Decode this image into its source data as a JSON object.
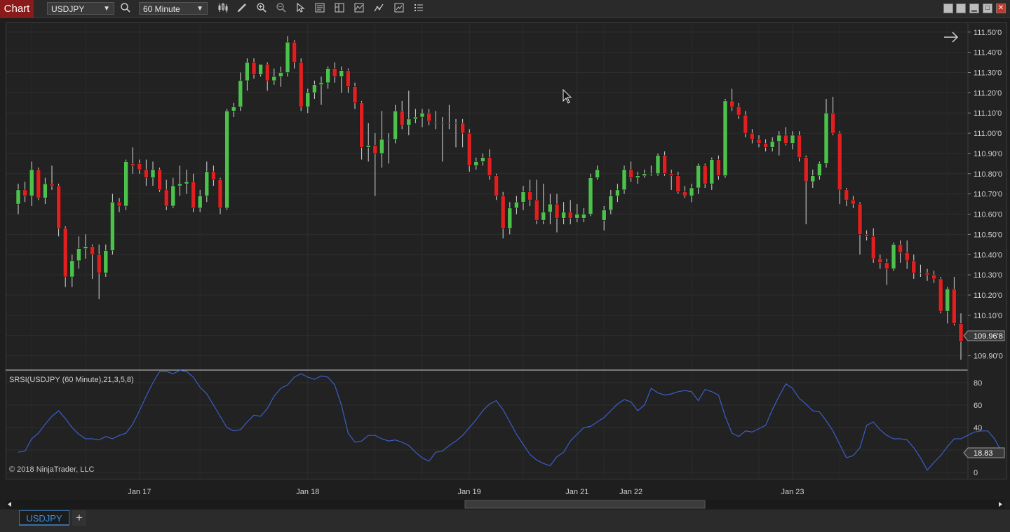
{
  "window": {
    "title": "Chart"
  },
  "toolbar": {
    "instrument": "USDJPY",
    "interval": "60 Minute",
    "icons": [
      "search-icon",
      "bar-chart-icon",
      "pencil-icon",
      "zoom-in-icon",
      "zoom-out-icon",
      "pointer-icon",
      "data-box-icon",
      "chart-style-icon",
      "indicators-icon",
      "strategies-icon",
      "chart-trader-icon",
      "properties-icon"
    ]
  },
  "window_buttons": [
    "minimize-icon",
    "maximize-icon",
    "close-icon"
  ],
  "price_axis": {
    "labels": [
      "111.50'0",
      "111.40'0",
      "111.30'0",
      "111.20'0",
      "111.10'0",
      "111.00'0",
      "110.90'0",
      "110.80'0",
      "110.70'0",
      "110.60'0",
      "110.50'0",
      "110.40'0",
      "110.30'0",
      "110.20'0",
      "110.10'0",
      "110.00'0",
      "109.90'0"
    ],
    "current_price": "109.96'8"
  },
  "indicator": {
    "label": "SRSI(USDJPY (60 Minute),21,3,5,8)",
    "axis_labels": [
      "80",
      "60",
      "40",
      "20",
      "0"
    ],
    "current_value": "18.83",
    "copyright": "© 2018 NinjaTrader, LLC"
  },
  "time_axis": {
    "labels": [
      "Jan 17",
      "Jan 18",
      "Jan 19",
      "Jan 21",
      "Jan 22",
      "Jan 23"
    ]
  },
  "tabs": [
    {
      "label": "USDJPY"
    }
  ],
  "add_tab": "+",
  "chart_data": {
    "type": "candlestick",
    "y_range": [
      109.85,
      111.52
    ],
    "candles": [
      {
        "o": 110.65,
        "h": 110.75,
        "l": 110.6,
        "c": 110.72
      },
      {
        "o": 110.72,
        "h": 110.76,
        "l": 110.66,
        "c": 110.69
      },
      {
        "o": 110.69,
        "h": 110.86,
        "l": 110.64,
        "c": 110.82
      },
      {
        "o": 110.82,
        "h": 110.83,
        "l": 110.67,
        "c": 110.68
      },
      {
        "o": 110.68,
        "h": 110.78,
        "l": 110.65,
        "c": 110.75
      },
      {
        "o": 110.75,
        "h": 110.84,
        "l": 110.72,
        "c": 110.74
      },
      {
        "o": 110.74,
        "h": 110.75,
        "l": 110.49,
        "c": 110.53
      },
      {
        "o": 110.53,
        "h": 110.54,
        "l": 110.24,
        "c": 110.29
      },
      {
        "o": 110.29,
        "h": 110.4,
        "l": 110.24,
        "c": 110.37
      },
      {
        "o": 110.37,
        "h": 110.49,
        "l": 110.33,
        "c": 110.43
      },
      {
        "o": 110.43,
        "h": 110.5,
        "l": 110.38,
        "c": 110.44
      },
      {
        "o": 110.44,
        "h": 110.45,
        "l": 110.28,
        "c": 110.4
      },
      {
        "o": 110.4,
        "h": 110.45,
        "l": 110.18,
        "c": 110.31
      },
      {
        "o": 110.31,
        "h": 110.45,
        "l": 110.29,
        "c": 110.42
      },
      {
        "o": 110.42,
        "h": 110.7,
        "l": 110.4,
        "c": 110.66
      },
      {
        "o": 110.66,
        "h": 110.68,
        "l": 110.61,
        "c": 110.64
      },
      {
        "o": 110.64,
        "h": 110.87,
        "l": 110.62,
        "c": 110.86
      },
      {
        "o": 110.85,
        "h": 110.93,
        "l": 110.8,
        "c": 110.84
      },
      {
        "o": 110.85,
        "h": 110.87,
        "l": 110.8,
        "c": 110.82
      },
      {
        "o": 110.82,
        "h": 110.87,
        "l": 110.74,
        "c": 110.78
      },
      {
        "o": 110.78,
        "h": 110.86,
        "l": 110.74,
        "c": 110.82
      },
      {
        "o": 110.82,
        "h": 110.83,
        "l": 110.71,
        "c": 110.72
      },
      {
        "o": 110.72,
        "h": 110.77,
        "l": 110.62,
        "c": 110.64
      },
      {
        "o": 110.64,
        "h": 110.78,
        "l": 110.63,
        "c": 110.74
      },
      {
        "o": 110.74,
        "h": 110.84,
        "l": 110.69,
        "c": 110.75
      },
      {
        "o": 110.75,
        "h": 110.82,
        "l": 110.7,
        "c": 110.76
      },
      {
        "o": 110.76,
        "h": 110.8,
        "l": 110.61,
        "c": 110.63
      },
      {
        "o": 110.63,
        "h": 110.72,
        "l": 110.61,
        "c": 110.69
      },
      {
        "o": 110.69,
        "h": 110.86,
        "l": 110.66,
        "c": 110.81
      },
      {
        "o": 110.81,
        "h": 110.84,
        "l": 110.74,
        "c": 110.77
      },
      {
        "o": 110.77,
        "h": 110.78,
        "l": 110.6,
        "c": 110.63
      },
      {
        "o": 110.63,
        "h": 111.12,
        "l": 110.62,
        "c": 111.11
      },
      {
        "o": 111.11,
        "h": 111.15,
        "l": 111.08,
        "c": 111.13
      },
      {
        "o": 111.13,
        "h": 111.3,
        "l": 111.11,
        "c": 111.26
      },
      {
        "o": 111.26,
        "h": 111.37,
        "l": 111.21,
        "c": 111.35
      },
      {
        "o": 111.35,
        "h": 111.37,
        "l": 111.27,
        "c": 111.29
      },
      {
        "o": 111.29,
        "h": 111.34,
        "l": 111.28,
        "c": 111.34
      },
      {
        "o": 111.34,
        "h": 111.35,
        "l": 111.21,
        "c": 111.26
      },
      {
        "o": 111.26,
        "h": 111.32,
        "l": 111.24,
        "c": 111.28
      },
      {
        "o": 111.28,
        "h": 111.33,
        "l": 111.23,
        "c": 111.3
      },
      {
        "o": 111.3,
        "h": 111.48,
        "l": 111.28,
        "c": 111.45
      },
      {
        "o": 111.45,
        "h": 111.46,
        "l": 111.32,
        "c": 111.35
      },
      {
        "o": 111.35,
        "h": 111.37,
        "l": 111.11,
        "c": 111.13
      },
      {
        "o": 111.13,
        "h": 111.22,
        "l": 111.1,
        "c": 111.2
      },
      {
        "o": 111.2,
        "h": 111.26,
        "l": 111.17,
        "c": 111.24
      },
      {
        "o": 111.24,
        "h": 111.28,
        "l": 111.14,
        "c": 111.25
      },
      {
        "o": 111.25,
        "h": 111.33,
        "l": 111.22,
        "c": 111.32
      },
      {
        "o": 111.32,
        "h": 111.35,
        "l": 111.25,
        "c": 111.28
      },
      {
        "o": 111.28,
        "h": 111.33,
        "l": 111.2,
        "c": 111.31
      },
      {
        "o": 111.31,
        "h": 111.32,
        "l": 111.2,
        "c": 111.23
      },
      {
        "o": 111.23,
        "h": 111.25,
        "l": 111.12,
        "c": 111.15
      },
      {
        "o": 111.15,
        "h": 111.16,
        "l": 110.87,
        "c": 110.93
      },
      {
        "o": 110.93,
        "h": 111.05,
        "l": 110.86,
        "c": 110.94
      },
      {
        "o": 110.94,
        "h": 111.0,
        "l": 110.69,
        "c": 110.9
      },
      {
        "o": 110.9,
        "h": 111.11,
        "l": 110.83,
        "c": 110.97
      },
      {
        "o": 110.97,
        "h": 111.0,
        "l": 110.85,
        "c": 110.97
      },
      {
        "o": 110.97,
        "h": 111.14,
        "l": 110.95,
        "c": 111.11
      },
      {
        "o": 111.11,
        "h": 111.16,
        "l": 111.02,
        "c": 111.04
      },
      {
        "o": 111.04,
        "h": 111.21,
        "l": 110.99,
        "c": 111.07
      },
      {
        "o": 111.07,
        "h": 111.12,
        "l": 111.05,
        "c": 111.08
      },
      {
        "o": 111.08,
        "h": 111.12,
        "l": 111.03,
        "c": 111.1
      },
      {
        "o": 111.1,
        "h": 111.12,
        "l": 111.04,
        "c": 111.06
      },
      {
        "o": 111.05,
        "h": 111.11,
        "l": 111.02,
        "c": 111.05
      },
      {
        "o": 111.05,
        "h": 111.08,
        "l": 110.86,
        "c": 111.05
      },
      {
        "o": 111.05,
        "h": 111.14,
        "l": 111.02,
        "c": 111.05
      },
      {
        "o": 111.05,
        "h": 111.07,
        "l": 110.93,
        "c": 111.05
      },
      {
        "o": 111.05,
        "h": 111.07,
        "l": 110.93,
        "c": 111.0
      },
      {
        "o": 111.0,
        "h": 111.02,
        "l": 110.81,
        "c": 110.84
      },
      {
        "o": 110.84,
        "h": 110.88,
        "l": 110.82,
        "c": 110.86
      },
      {
        "o": 110.86,
        "h": 110.9,
        "l": 110.84,
        "c": 110.88
      },
      {
        "o": 110.88,
        "h": 110.92,
        "l": 110.77,
        "c": 110.79
      },
      {
        "o": 110.79,
        "h": 110.8,
        "l": 110.67,
        "c": 110.69
      },
      {
        "o": 110.69,
        "h": 110.71,
        "l": 110.48,
        "c": 110.53
      },
      {
        "o": 110.53,
        "h": 110.66,
        "l": 110.5,
        "c": 110.63
      },
      {
        "o": 110.63,
        "h": 110.69,
        "l": 110.6,
        "c": 110.66
      },
      {
        "o": 110.66,
        "h": 110.74,
        "l": 110.62,
        "c": 110.71
      },
      {
        "o": 110.71,
        "h": 110.77,
        "l": 110.64,
        "c": 110.67
      },
      {
        "o": 110.67,
        "h": 110.77,
        "l": 110.55,
        "c": 110.57
      },
      {
        "o": 110.57,
        "h": 110.75,
        "l": 110.55,
        "c": 110.61
      },
      {
        "o": 110.61,
        "h": 110.7,
        "l": 110.55,
        "c": 110.65
      },
      {
        "o": 110.65,
        "h": 110.7,
        "l": 110.51,
        "c": 110.58
      },
      {
        "o": 110.58,
        "h": 110.66,
        "l": 110.55,
        "c": 110.61
      },
      {
        "o": 110.61,
        "h": 110.67,
        "l": 110.55,
        "c": 110.58
      },
      {
        "o": 110.58,
        "h": 110.65,
        "l": 110.56,
        "c": 110.6
      },
      {
        "o": 110.58,
        "h": 110.63,
        "l": 110.56,
        "c": 110.6
      },
      {
        "o": 110.6,
        "h": 110.8,
        "l": 110.59,
        "c": 110.78
      },
      {
        "o": 110.78,
        "h": 110.84,
        "l": 110.77,
        "c": 110.82
      },
      {
        "o": 110.57,
        "h": 110.64,
        "l": 110.52,
        "c": 110.62
      },
      {
        "o": 110.62,
        "h": 110.72,
        "l": 110.6,
        "c": 110.69
      },
      {
        "o": 110.69,
        "h": 110.75,
        "l": 110.66,
        "c": 110.72
      },
      {
        "o": 110.72,
        "h": 110.84,
        "l": 110.7,
        "c": 110.82
      },
      {
        "o": 110.82,
        "h": 110.86,
        "l": 110.76,
        "c": 110.78
      },
      {
        "o": 110.78,
        "h": 110.81,
        "l": 110.75,
        "c": 110.79
      },
      {
        "o": 110.79,
        "h": 110.82,
        "l": 110.78,
        "c": 110.8
      },
      {
        "o": 110.8,
        "h": 110.84,
        "l": 110.79,
        "c": 110.8
      },
      {
        "o": 110.8,
        "h": 110.9,
        "l": 110.79,
        "c": 110.89
      },
      {
        "o": 110.89,
        "h": 110.91,
        "l": 110.79,
        "c": 110.8
      },
      {
        "o": 110.8,
        "h": 110.82,
        "l": 110.72,
        "c": 110.79
      },
      {
        "o": 110.79,
        "h": 110.81,
        "l": 110.7,
        "c": 110.71
      },
      {
        "o": 110.71,
        "h": 110.74,
        "l": 110.68,
        "c": 110.69
      },
      {
        "o": 110.69,
        "h": 110.75,
        "l": 110.66,
        "c": 110.73
      },
      {
        "o": 110.73,
        "h": 110.85,
        "l": 110.7,
        "c": 110.84
      },
      {
        "o": 110.84,
        "h": 110.85,
        "l": 110.73,
        "c": 110.75
      },
      {
        "o": 110.75,
        "h": 110.88,
        "l": 110.72,
        "c": 110.87
      },
      {
        "o": 110.87,
        "h": 110.89,
        "l": 110.77,
        "c": 110.79
      },
      {
        "o": 110.79,
        "h": 111.17,
        "l": 110.78,
        "c": 111.16
      },
      {
        "o": 111.16,
        "h": 111.22,
        "l": 111.11,
        "c": 111.13
      },
      {
        "o": 111.13,
        "h": 111.15,
        "l": 111.07,
        "c": 111.09
      },
      {
        "o": 111.09,
        "h": 111.11,
        "l": 110.98,
        "c": 111.0
      },
      {
        "o": 111.0,
        "h": 111.02,
        "l": 110.95,
        "c": 110.97
      },
      {
        "o": 110.97,
        "h": 110.99,
        "l": 110.93,
        "c": 110.95
      },
      {
        "o": 110.95,
        "h": 110.97,
        "l": 110.91,
        "c": 110.93
      },
      {
        "o": 110.93,
        "h": 110.98,
        "l": 110.91,
        "c": 110.96
      },
      {
        "o": 110.96,
        "h": 111.01,
        "l": 110.89,
        "c": 110.99
      },
      {
        "o": 110.99,
        "h": 111.03,
        "l": 110.94,
        "c": 110.95
      },
      {
        "o": 110.95,
        "h": 111.01,
        "l": 110.92,
        "c": 110.99
      },
      {
        "o": 110.99,
        "h": 111.01,
        "l": 110.86,
        "c": 110.88
      },
      {
        "o": 110.88,
        "h": 110.89,
        "l": 110.55,
        "c": 110.76
      },
      {
        "o": 110.76,
        "h": 110.82,
        "l": 110.73,
        "c": 110.79
      },
      {
        "o": 110.79,
        "h": 110.86,
        "l": 110.77,
        "c": 110.85
      },
      {
        "o": 110.85,
        "h": 111.17,
        "l": 110.83,
        "c": 111.1
      },
      {
        "o": 111.1,
        "h": 111.18,
        "l": 110.99,
        "c": 111.0
      },
      {
        "o": 111.0,
        "h": 111.01,
        "l": 110.65,
        "c": 110.72
      },
      {
        "o": 110.72,
        "h": 110.73,
        "l": 110.64,
        "c": 110.67
      },
      {
        "o": 110.67,
        "h": 110.69,
        "l": 110.63,
        "c": 110.65
      },
      {
        "o": 110.65,
        "h": 110.66,
        "l": 110.4,
        "c": 110.5
      },
      {
        "o": 110.5,
        "h": 110.52,
        "l": 110.47,
        "c": 110.49
      },
      {
        "o": 110.49,
        "h": 110.53,
        "l": 110.36,
        "c": 110.38
      },
      {
        "o": 110.38,
        "h": 110.4,
        "l": 110.33,
        "c": 110.36
      },
      {
        "o": 110.36,
        "h": 110.38,
        "l": 110.25,
        "c": 110.33
      },
      {
        "o": 110.33,
        "h": 110.46,
        "l": 110.32,
        "c": 110.45
      },
      {
        "o": 110.45,
        "h": 110.47,
        "l": 110.36,
        "c": 110.41
      },
      {
        "o": 110.41,
        "h": 110.47,
        "l": 110.33,
        "c": 110.37
      },
      {
        "o": 110.37,
        "h": 110.4,
        "l": 110.28,
        "c": 110.31
      },
      {
        "o": 110.31,
        "h": 110.35,
        "l": 110.29,
        "c": 110.31
      },
      {
        "o": 110.31,
        "h": 110.33,
        "l": 110.27,
        "c": 110.3
      },
      {
        "o": 110.3,
        "h": 110.32,
        "l": 110.26,
        "c": 110.28
      },
      {
        "o": 110.28,
        "h": 110.29,
        "l": 110.11,
        "c": 110.12
      },
      {
        "o": 110.12,
        "h": 110.24,
        "l": 110.06,
        "c": 110.23
      },
      {
        "o": 110.23,
        "h": 110.29,
        "l": 110.05,
        "c": 110.06
      },
      {
        "o": 110.06,
        "h": 110.11,
        "l": 109.88,
        "c": 109.97
      }
    ],
    "indicator_series": [
      18,
      19,
      30,
      35,
      43,
      50,
      55,
      48,
      40,
      34,
      30,
      30,
      29,
      32,
      30,
      33,
      35,
      43,
      55,
      68,
      80,
      90,
      90,
      88,
      91,
      90,
      85,
      76,
      70,
      60,
      50,
      40,
      37,
      38,
      45,
      51,
      50,
      57,
      68,
      75,
      78,
      85,
      88,
      85,
      83,
      86,
      85,
      78,
      60,
      35,
      27,
      28,
      33,
      33,
      30,
      28,
      29,
      27,
      24,
      18,
      13,
      10,
      18,
      19,
      24,
      28,
      33,
      40,
      47,
      55,
      61,
      64,
      56,
      45,
      34,
      25,
      16,
      11,
      8,
      6,
      14,
      18,
      28,
      34,
      40,
      41,
      45,
      49,
      55,
      61,
      65,
      63,
      55,
      60,
      75,
      71,
      69,
      70,
      72,
      73,
      72,
      64,
      74,
      72,
      69,
      50,
      35,
      32,
      37,
      36,
      39,
      42,
      56,
      68,
      79,
      75,
      66,
      61,
      55,
      54,
      46,
      37,
      25,
      13,
      15,
      22,
      42,
      45,
      38,
      33,
      30,
      30,
      29,
      22,
      13,
      2,
      9,
      15,
      23,
      30,
      30,
      33,
      36,
      37,
      37,
      30,
      18.83
    ],
    "indicator_range": [
      0,
      90
    ],
    "price_grid": [
      111.5,
      111.4,
      111.3,
      111.2,
      111.1,
      111.0,
      110.9,
      110.8,
      110.7,
      110.6,
      110.5,
      110.4,
      110.3,
      110.2,
      110.1,
      110.0,
      109.9
    ],
    "indicator_grid": [
      80,
      60,
      40,
      20,
      0
    ],
    "time_label_bars": [
      18,
      43,
      67,
      83,
      91,
      115
    ]
  },
  "colors": {
    "up": "#4cc24c",
    "down": "#e02020",
    "wick": "#d8d8d8",
    "indicator_line": "#3a5fc8",
    "background": "#222222",
    "grid": "#2e2e2e"
  }
}
